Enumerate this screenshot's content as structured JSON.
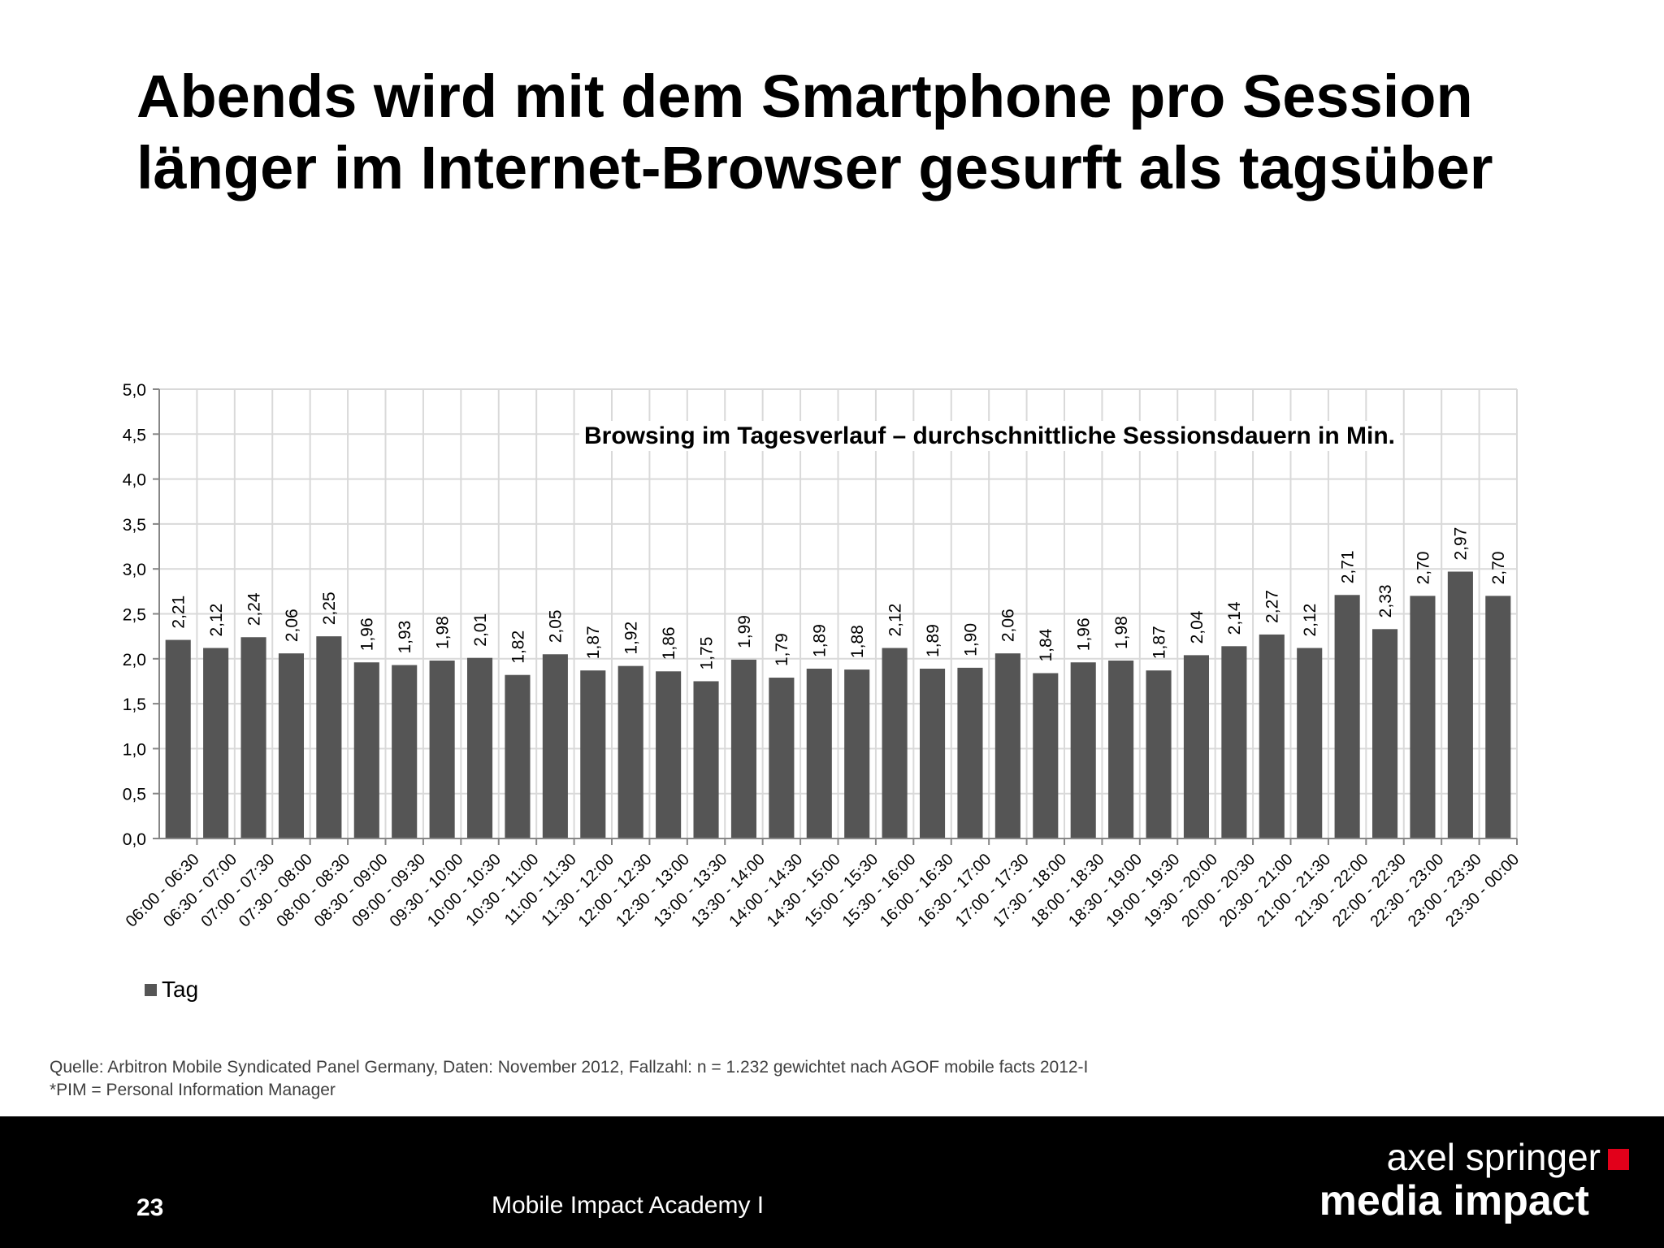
{
  "slide": {
    "title_line_1": "Abends wird mit dem Smartphone pro Session",
    "title_line_2": "länger im Internet-Browser gesurft als tagsüber",
    "source_line_1": "Quelle: Arbitron Mobile Syndicated Panel Germany, Daten: November 2012, Fallzahl: n = 1.232 gewichtet nach AGOF mobile facts 2012-I",
    "source_line_2": "*PIM = Personal Information Manager"
  },
  "footer": {
    "page_number": "23",
    "title": "Mobile Impact Academy I",
    "logo_line_1": "axel springer",
    "logo_line_2": "media impact",
    "background_color": "#000000",
    "logo_accent_color": "#e2001a"
  },
  "chart_data": {
    "type": "bar",
    "title": "Browsing im Tagesverlauf – durchschnittliche Sessionsdauern in Min.",
    "xlabel": "",
    "ylabel": "",
    "ylim": [
      0,
      5
    ],
    "yticks": [
      "0,0",
      "0,5",
      "1,0",
      "1,5",
      "2,0",
      "2,5",
      "3,0",
      "3,5",
      "4,0",
      "4,5",
      "5,0"
    ],
    "grid": true,
    "legend_position": "bottom-left",
    "bar_color": "#555555",
    "categories": [
      "06:00 - 06:30",
      "06:30 - 07:00",
      "07:00 - 07:30",
      "07:30 - 08:00",
      "08:00 - 08:30",
      "08:30 - 09:00",
      "09:00 - 09:30",
      "09:30 - 10:00",
      "10:00 - 10:30",
      "10:30 - 11:00",
      "11:00 - 11:30",
      "11:30 - 12:00",
      "12:00 - 12:30",
      "12:30 - 13:00",
      "13:00 - 13:30",
      "13:30 - 14:00",
      "14:00 - 14:30",
      "14:30 - 15:00",
      "15:00 - 15:30",
      "15:30 - 16:00",
      "16:00 - 16:30",
      "16:30 - 17:00",
      "17:00 - 17:30",
      "17:30 - 18:00",
      "18:00 - 18:30",
      "18:30 - 19:00",
      "19:00 - 19:30",
      "19:30 - 20:00",
      "20:00 - 20:30",
      "20:30 - 21:00",
      "21:00 - 21:30",
      "21:30 - 22:00",
      "22:00 - 22:30",
      "22:30 - 23:00",
      "23:00 - 23:30",
      "23:30 - 00:00"
    ],
    "series": [
      {
        "name": "Tag",
        "values": [
          2.21,
          2.12,
          2.24,
          2.06,
          2.25,
          1.96,
          1.93,
          1.98,
          2.01,
          1.82,
          2.05,
          1.87,
          1.92,
          1.86,
          1.75,
          1.99,
          1.79,
          1.89,
          1.88,
          2.12,
          1.89,
          1.9,
          2.06,
          1.84,
          1.96,
          1.98,
          1.87,
          2.04,
          2.14,
          2.27,
          2.12,
          2.71,
          2.33,
          2.7,
          2.97,
          2.7
        ],
        "labels": [
          "2,21",
          "2,12",
          "2,24",
          "2,06",
          "2,25",
          "1,96",
          "1,93",
          "1,98",
          "2,01",
          "1,82",
          "2,05",
          "1,87",
          "1,92",
          "1,86",
          "1,75",
          "1,99",
          "1,79",
          "1,89",
          "1,88",
          "2,12",
          "1,89",
          "1,90",
          "2,06",
          "1,84",
          "1,96",
          "1,98",
          "1,87",
          "2,04",
          "2,14",
          "2,27",
          "2,12",
          "2,71",
          "2,33",
          "2,70",
          "2,97",
          "2,70"
        ]
      }
    ]
  }
}
